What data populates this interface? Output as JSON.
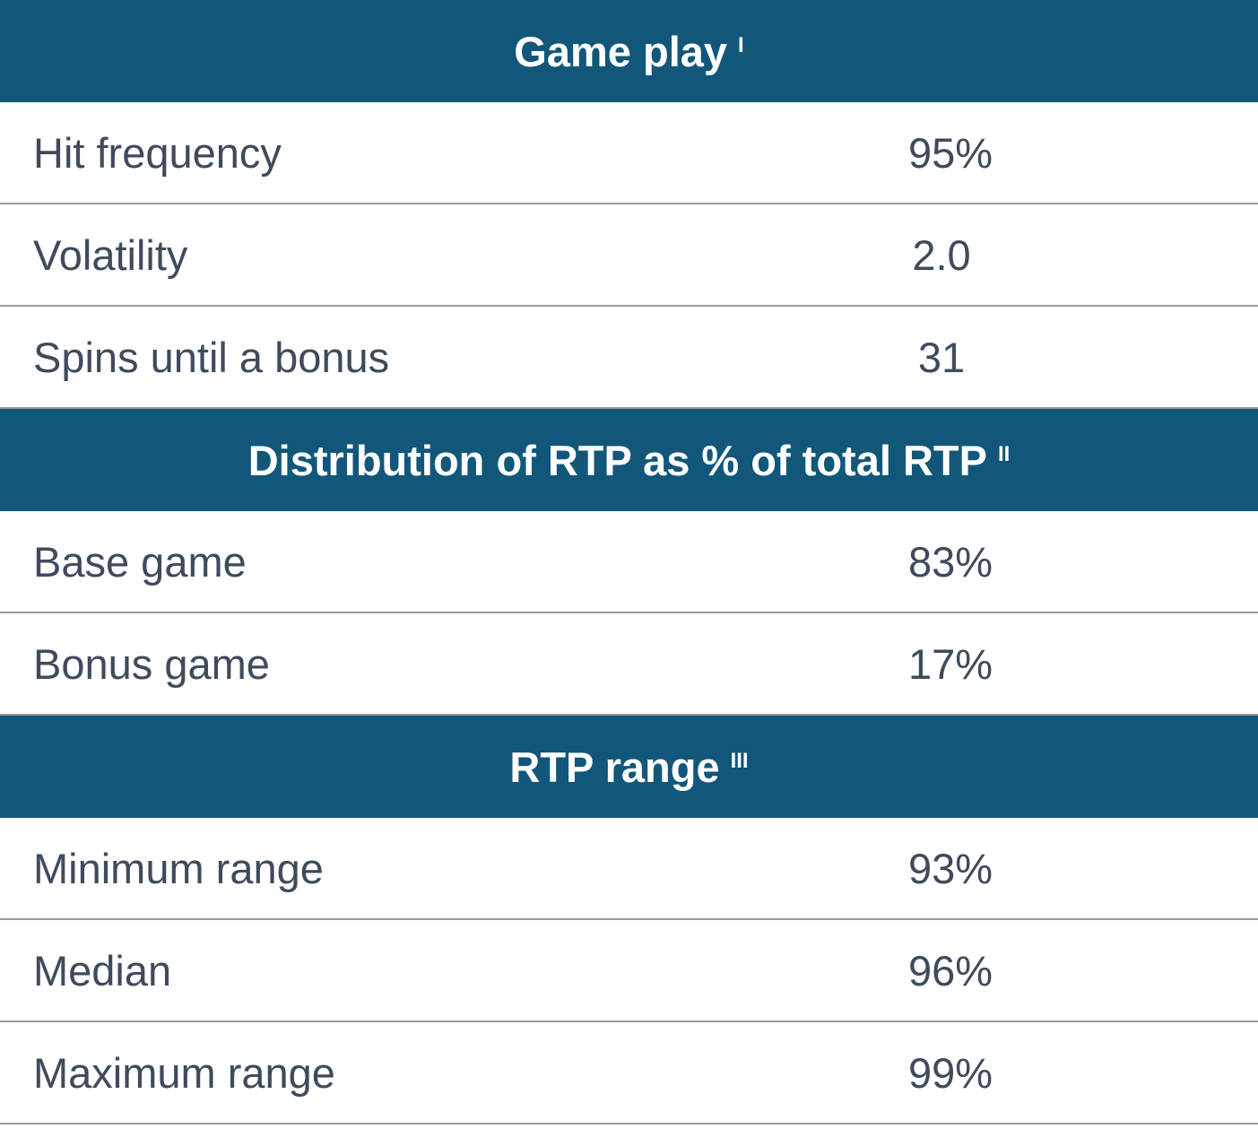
{
  "sections": [
    {
      "title": "Game play",
      "note": "I",
      "rows": [
        {
          "label": "Hit frequency",
          "value": "95%"
        },
        {
          "label": "Volatility",
          "value": "2.0"
        },
        {
          "label": "Spins until a bonus",
          "value": "31"
        }
      ]
    },
    {
      "title": "Distribution of RTP as % of total RTP",
      "note": "II",
      "rows": [
        {
          "label": "Base game",
          "value": "83%"
        },
        {
          "label": "Bonus game",
          "value": "17%"
        }
      ]
    },
    {
      "title": "RTP range",
      "note": "III",
      "rows": [
        {
          "label": "Minimum range",
          "value": "93%"
        },
        {
          "label": "Median",
          "value": "96%"
        },
        {
          "label": "Maximum range",
          "value": "99%"
        }
      ]
    }
  ]
}
